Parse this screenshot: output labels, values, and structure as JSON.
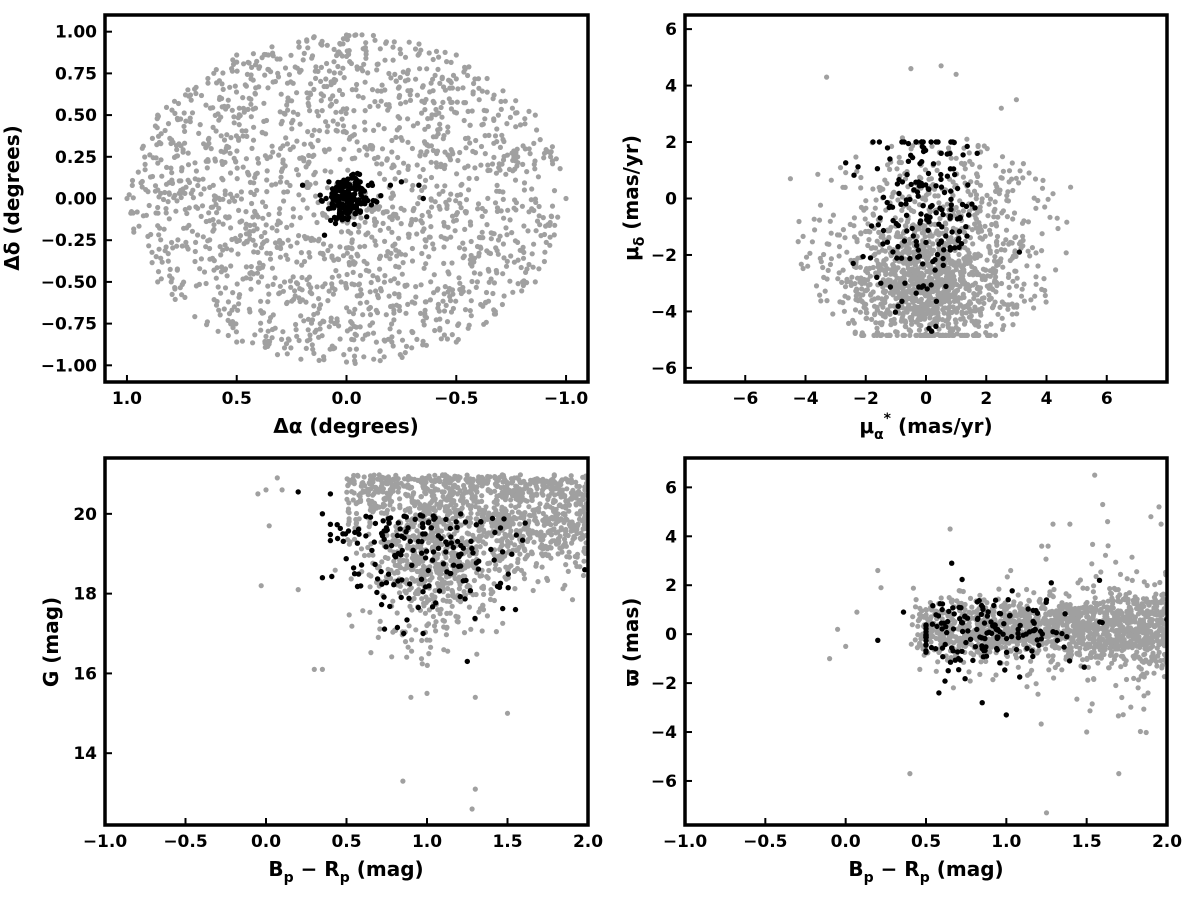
{
  "colors": {
    "field": "#a0a0a0",
    "members": "#000000",
    "frame": "#000000",
    "background": "#ffffff"
  },
  "chart_data": [
    {
      "id": "sky",
      "type": "scatter",
      "xlabel": "Δα (degrees)",
      "ylabel": "Δδ (degrees)",
      "xlim": [
        1.1,
        -1.1
      ],
      "ylim": [
        -1.1,
        1.1
      ],
      "x_inverted": true,
      "xticks": [
        1.0,
        0.5,
        0.0,
        -0.5,
        -1.0
      ],
      "xtick_labels": [
        "1.0",
        "0.5",
        "0.0",
        "−0.5",
        "−1.0"
      ],
      "yticks": [
        1.0,
        0.75,
        0.5,
        0.25,
        0.0,
        -0.25,
        -0.5,
        -0.75,
        -1.0
      ],
      "ytick_labels": [
        "1.00",
        "0.75",
        "0.50",
        "0.25",
        "0.00",
        "−0.25",
        "−0.50",
        "−0.75",
        "−1.00"
      ],
      "grid": false,
      "series": [
        {
          "role": "field",
          "color": "#a0a0a0",
          "n_points": 1800,
          "distribution": "uniform disk",
          "points": [
            [
              0.0,
              0.98
            ],
            [
              0.5,
              0.86
            ],
            [
              -0.5,
              0.86
            ],
            [
              0.86,
              0.5
            ],
            [
              -0.86,
              0.5
            ],
            [
              1.0,
              0.0
            ],
            [
              -1.0,
              0.0
            ],
            [
              0.86,
              -0.5
            ],
            [
              -0.86,
              -0.5
            ],
            [
              0.5,
              -0.86
            ],
            [
              -0.5,
              -0.86
            ],
            [
              0.0,
              -0.98
            ],
            [
              0.3,
              0.3
            ],
            [
              -0.3,
              -0.3
            ],
            [
              0.3,
              -0.3
            ],
            [
              -0.3,
              0.3
            ]
          ]
        },
        {
          "role": "members",
          "color": "#000000",
          "n_points": 180,
          "center": [
            0.0,
            0.0
          ],
          "spread": [
            0.05,
            0.07
          ],
          "points": [
            [
              -0.2,
              0.08
            ],
            [
              -0.25,
              0.1
            ],
            [
              -0.33,
              0.08
            ],
            [
              -0.35,
              0.0
            ],
            [
              0.2,
              0.08
            ],
            [
              0.1,
              -0.22
            ],
            [
              0.05,
              -0.15
            ],
            [
              -0.05,
              0.15
            ],
            [
              0.08,
              0.1
            ],
            [
              0.12,
              0.02
            ]
          ]
        }
      ]
    },
    {
      "id": "proper-motion",
      "type": "scatter",
      "xlabel_main": "μ",
      "xlabel_sub": "α",
      "xlabel_sup": "*",
      "xlabel_unit": " (mas/yr)",
      "ylabel_main": "μ",
      "ylabel_sub": "δ",
      "ylabel_unit": " (mas/yr)",
      "xlim": [
        -8,
        8
      ],
      "ylim": [
        -6.5,
        6.5
      ],
      "xticks": [
        -6,
        -4,
        -2,
        0,
        2,
        4,
        6
      ],
      "xtick_labels": [
        "−6",
        "−4",
        "−2",
        "0",
        "2",
        "4",
        "6"
      ],
      "yticks": [
        -6,
        -4,
        -2,
        0,
        2,
        4,
        6
      ],
      "ytick_labels": [
        "−6",
        "−4",
        "−2",
        "0",
        "2",
        "4",
        "6"
      ],
      "grid": false,
      "series": [
        {
          "role": "field",
          "color": "#a0a0a0",
          "n_points": 1500,
          "center": [
            0.0,
            -2.0
          ],
          "spread": [
            1.8,
            2.2
          ],
          "x_range": [
            -4.8,
            4.8
          ],
          "y_range": [
            -4.8,
            4.8
          ],
          "points": [
            [
              -3.3,
              4.3
            ],
            [
              -0.5,
              4.6
            ],
            [
              1.0,
              4.4
            ],
            [
              0.5,
              4.7
            ],
            [
              -4.5,
              0.7
            ],
            [
              4.8,
              0.4
            ],
            [
              3.0,
              3.5
            ],
            [
              2.5,
              3.2
            ]
          ]
        },
        {
          "role": "members",
          "color": "#000000",
          "n_points": 170,
          "center": [
            0.0,
            -0.6
          ],
          "spread": [
            0.9,
            1.5
          ],
          "points": [
            [
              -1.2,
              1.4
            ],
            [
              0.5,
              1.6
            ],
            [
              1.7,
              1.6
            ],
            [
              -0.8,
              2.0
            ],
            [
              3.1,
              -1.9
            ],
            [
              0.1,
              -4.6
            ],
            [
              -0.7,
              -3.0
            ],
            [
              -1.5,
              -3.0
            ]
          ]
        }
      ]
    },
    {
      "id": "cmd",
      "type": "scatter",
      "xlabel_main": "B",
      "xlabel_sub": "p",
      "xlabel_mid": " − R",
      "xlabel_sub2": "p",
      "xlabel_unit": " (mag)",
      "ylabel": "G (mag)",
      "xlim": [
        -1.0,
        2.0
      ],
      "ylim": [
        12.2,
        21.4
      ],
      "y_inverted": false,
      "xticks": [
        -1.0,
        -0.5,
        0.0,
        0.5,
        1.0,
        1.5,
        2.0
      ],
      "xtick_labels": [
        "−1.0",
        "−0.5",
        "0.0",
        "0.5",
        "1.0",
        "1.5",
        "2.0"
      ],
      "yticks": [
        14,
        16,
        18,
        20
      ],
      "ytick_labels": [
        "14",
        "16",
        "18",
        "20"
      ],
      "grid": false,
      "series": [
        {
          "role": "field",
          "color": "#a0a0a0",
          "n_points": 1600,
          "points": [
            [
              -0.05,
              20.5
            ],
            [
              0.0,
              20.6
            ],
            [
              0.07,
              20.9
            ],
            [
              0.1,
              20.6
            ],
            [
              0.02,
              19.7
            ],
            [
              -0.03,
              18.2
            ],
            [
              0.2,
              18.1
            ],
            [
              0.3,
              16.1
            ],
            [
              0.35,
              16.1
            ],
            [
              0.9,
              15.4
            ],
            [
              1.0,
              15.5
            ],
            [
              1.5,
              15.0
            ],
            [
              0.85,
              13.3
            ],
            [
              1.3,
              13.1
            ],
            [
              1.28,
              12.6
            ],
            [
              1.3,
              15.4
            ]
          ]
        },
        {
          "role": "members",
          "color": "#000000",
          "n_points": 170,
          "points": [
            [
              0.2,
              20.55
            ],
            [
              0.35,
              18.4
            ],
            [
              1.25,
              16.3
            ],
            [
              1.55,
              17.6
            ],
            [
              1.98,
              18.6
            ],
            [
              0.35,
              20.0
            ],
            [
              0.4,
              20.5
            ],
            [
              0.55,
              18.5
            ]
          ]
        }
      ]
    },
    {
      "id": "parallax",
      "type": "scatter",
      "xlabel_main": "B",
      "xlabel_sub": "p",
      "xlabel_mid": " − R",
      "xlabel_sub2": "p",
      "xlabel_unit": " (mag)",
      "ylabel": "ϖ (mas)",
      "xlim": [
        -1.0,
        2.0
      ],
      "ylim": [
        -7.8,
        7.2
      ],
      "xticks": [
        -1.0,
        -0.5,
        0.0,
        0.5,
        1.0,
        1.5,
        2.0
      ],
      "xtick_labels": [
        "−1.0",
        "−0.5",
        "0.0",
        "0.5",
        "1.0",
        "1.5",
        "2.0"
      ],
      "yticks": [
        -6,
        -4,
        -2,
        0,
        2,
        4,
        6
      ],
      "ytick_labels": [
        "−6",
        "−4",
        "−2",
        "0",
        "2",
        "4",
        "6"
      ],
      "grid": false,
      "series": [
        {
          "role": "field",
          "color": "#a0a0a0",
          "n_points": 1500,
          "points": [
            [
              -0.1,
              -1.0
            ],
            [
              -0.05,
              0.2
            ],
            [
              0.0,
              -0.5
            ],
            [
              0.07,
              0.9
            ],
            [
              0.2,
              2.6
            ],
            [
              0.22,
              1.9
            ],
            [
              0.4,
              -5.7
            ],
            [
              0.65,
              4.3
            ],
            [
              1.25,
              -7.3
            ],
            [
              1.55,
              6.5
            ],
            [
              1.6,
              5.3
            ],
            [
              1.63,
              4.6
            ],
            [
              1.7,
              -5.7
            ],
            [
              1.9,
              4.8
            ],
            [
              1.95,
              5.2
            ],
            [
              1.5,
              -4.0
            ],
            [
              1.22,
              3.6
            ],
            [
              1.26,
              3.6
            ]
          ]
        },
        {
          "role": "members",
          "color": "#000000",
          "n_points": 160,
          "points": [
            [
              0.36,
              0.9
            ],
            [
              0.66,
              2.9
            ],
            [
              1.0,
              -3.3
            ],
            [
              0.85,
              -2.8
            ],
            [
              0.58,
              -2.4
            ],
            [
              1.28,
              2.1
            ],
            [
              1.25,
              1.4
            ],
            [
              1.58,
              2.2
            ],
            [
              2.0,
              0.6
            ],
            [
              0.2,
              -0.25
            ]
          ]
        }
      ]
    }
  ]
}
